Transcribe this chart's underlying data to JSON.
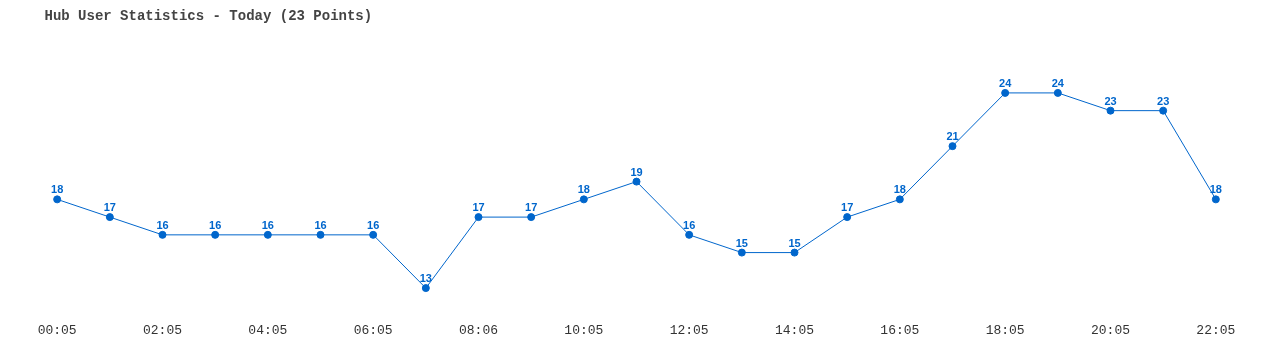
{
  "chart_data": {
    "type": "line",
    "title": "Hub User Statistics - Today (23 Points)",
    "categories": [
      "00:05",
      null,
      "02:05",
      null,
      "04:05",
      null,
      "06:05",
      null,
      "08:06",
      null,
      "10:05",
      null,
      "12:05",
      null,
      "14:05",
      null,
      "16:05",
      null,
      "18:05",
      null,
      "20:05",
      null,
      "22:05"
    ],
    "series": [
      {
        "color": "#0066cc",
        "values": [
          18,
          17,
          16,
          16,
          16,
          16,
          16,
          13,
          17,
          17,
          18,
          19,
          16,
          15,
          15,
          17,
          18,
          21,
          24,
          24,
          23,
          23,
          18
        ]
      }
    ],
    "data_labels": true,
    "marker": "circle",
    "line_style": "solid",
    "grid": false
  }
}
